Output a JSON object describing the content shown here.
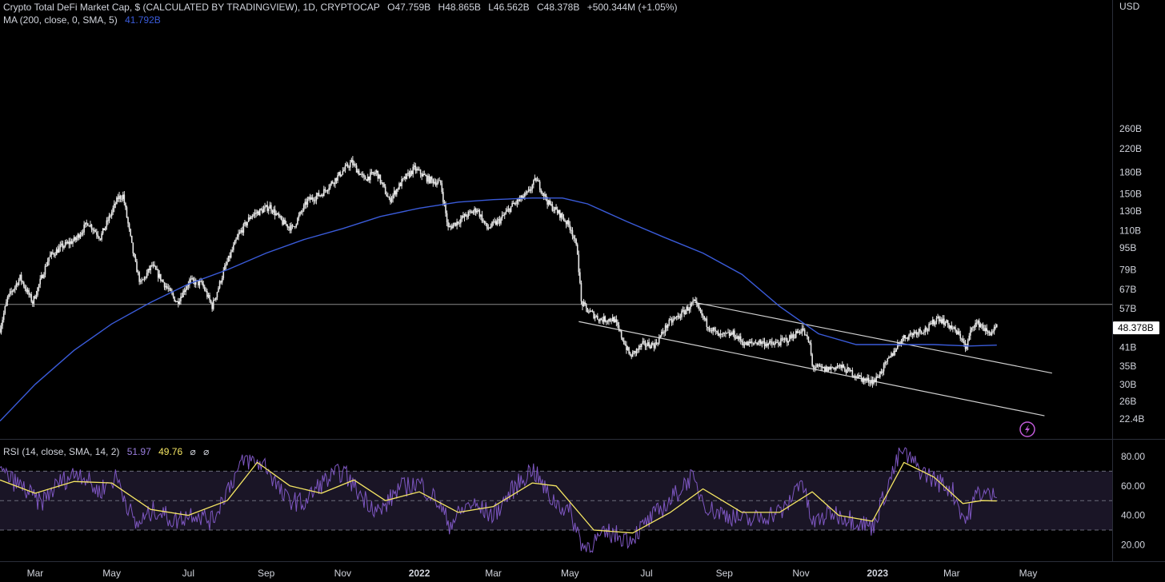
{
  "header": {
    "title": "Crypto Total DeFi Market Cap, $ (CALCULATED BY TRADINGVIEW), 1D, CRYPTOCAP",
    "open": "O47.759B",
    "high": "H48.865B",
    "low": "L46.562B",
    "close": "C48.378B",
    "change": "+500.344M (+1.05%)",
    "ma_label": "MA (200, close, 0, SMA, 5)",
    "ma_value": "41.792B",
    "currency": "USD"
  },
  "colors": {
    "background": "#000000",
    "candles": "#e8e8e8",
    "ma_line": "#3a5bd9",
    "channel": "#d0d0d0",
    "rsi_line": "#7e57c2",
    "rsi_ma": "#f5e663",
    "rsi_band": "#1a1526",
    "last_price_label_bg": "#ffffff"
  },
  "chart_data": [
    {
      "type": "candlestick",
      "title": "Crypto Total DeFi Market Cap",
      "y_scale": "log",
      "y_ticks": [
        "260B",
        "220B",
        "180B",
        "150B",
        "130B",
        "110B",
        "95B",
        "79B",
        "67B",
        "57B",
        "48.378B",
        "41B",
        "35B",
        "30B",
        "26B",
        "22.4B"
      ],
      "y_tick_values": [
        260,
        220,
        180,
        150,
        130,
        110,
        95,
        79,
        67,
        57,
        48.378,
        41,
        35,
        30,
        26,
        22.4
      ],
      "y_unit": "USD (billions)",
      "last_price": 48.378,
      "last_price_label": "48.378B",
      "x_ticks": [
        "Mar",
        "May",
        "Jul",
        "Sep",
        "Nov",
        "2022",
        "Mar",
        "May",
        "Jul",
        "Sep",
        "Nov",
        "2023",
        "Mar",
        "May"
      ],
      "x_tick_dates": [
        "2021-03",
        "2021-05",
        "2021-07",
        "2021-09",
        "2021-11",
        "2022-01",
        "2022-03",
        "2022-05",
        "2022-07",
        "2022-09",
        "2022-11",
        "2023-01",
        "2023-03",
        "2023-05"
      ],
      "price_path": [
        {
          "date": "2021-02-01",
          "value": 48
        },
        {
          "date": "2021-02-07",
          "value": 62
        },
        {
          "date": "2021-02-17",
          "value": 74
        },
        {
          "date": "2021-02-27",
          "value": 60
        },
        {
          "date": "2021-03-12",
          "value": 88
        },
        {
          "date": "2021-03-22",
          "value": 96
        },
        {
          "date": "2021-04-02",
          "value": 102
        },
        {
          "date": "2021-04-12",
          "value": 118
        },
        {
          "date": "2021-04-22",
          "value": 104
        },
        {
          "date": "2021-05-06",
          "value": 145
        },
        {
          "date": "2021-05-10",
          "value": 148
        },
        {
          "date": "2021-05-19",
          "value": 86
        },
        {
          "date": "2021-05-24",
          "value": 70
        },
        {
          "date": "2021-06-02",
          "value": 82
        },
        {
          "date": "2021-06-12",
          "value": 70
        },
        {
          "date": "2021-06-22",
          "value": 60
        },
        {
          "date": "2021-07-02",
          "value": 72
        },
        {
          "date": "2021-07-12",
          "value": 70
        },
        {
          "date": "2021-07-20",
          "value": 58
        },
        {
          "date": "2021-07-30",
          "value": 80
        },
        {
          "date": "2021-08-10",
          "value": 106
        },
        {
          "date": "2021-08-20",
          "value": 125
        },
        {
          "date": "2021-09-04",
          "value": 135
        },
        {
          "date": "2021-09-14",
          "value": 118
        },
        {
          "date": "2021-09-22",
          "value": 112
        },
        {
          "date": "2021-10-04",
          "value": 142
        },
        {
          "date": "2021-10-15",
          "value": 150
        },
        {
          "date": "2021-10-30",
          "value": 178
        },
        {
          "date": "2021-11-08",
          "value": 196
        },
        {
          "date": "2021-11-18",
          "value": 170
        },
        {
          "date": "2021-11-28",
          "value": 180
        },
        {
          "date": "2021-12-08",
          "value": 142
        },
        {
          "date": "2021-12-18",
          "value": 166
        },
        {
          "date": "2021-12-28",
          "value": 186
        },
        {
          "date": "2022-01-08",
          "value": 170
        },
        {
          "date": "2022-01-18",
          "value": 164
        },
        {
          "date": "2022-01-24",
          "value": 112
        },
        {
          "date": "2022-02-06",
          "value": 124
        },
        {
          "date": "2022-02-16",
          "value": 132
        },
        {
          "date": "2022-02-24",
          "value": 112
        },
        {
          "date": "2022-03-06",
          "value": 120
        },
        {
          "date": "2022-03-16",
          "value": 136
        },
        {
          "date": "2022-03-28",
          "value": 150
        },
        {
          "date": "2022-04-04",
          "value": 170
        },
        {
          "date": "2022-04-14",
          "value": 138
        },
        {
          "date": "2022-04-24",
          "value": 125
        },
        {
          "date": "2022-05-02",
          "value": 112
        },
        {
          "date": "2022-05-07",
          "value": 92
        },
        {
          "date": "2022-05-10",
          "value": 60
        },
        {
          "date": "2022-05-15",
          "value": 56
        },
        {
          "date": "2022-05-25",
          "value": 52
        },
        {
          "date": "2022-06-05",
          "value": 52
        },
        {
          "date": "2022-06-12",
          "value": 44
        },
        {
          "date": "2022-06-18",
          "value": 38
        },
        {
          "date": "2022-06-28",
          "value": 42
        },
        {
          "date": "2022-07-08",
          "value": 42
        },
        {
          "date": "2022-07-18",
          "value": 50
        },
        {
          "date": "2022-07-28",
          "value": 54
        },
        {
          "date": "2022-08-08",
          "value": 60
        },
        {
          "date": "2022-08-18",
          "value": 50
        },
        {
          "date": "2022-08-28",
          "value": 45
        },
        {
          "date": "2022-09-08",
          "value": 46
        },
        {
          "date": "2022-09-18",
          "value": 42
        },
        {
          "date": "2022-09-28",
          "value": 43
        },
        {
          "date": "2022-10-10",
          "value": 42
        },
        {
          "date": "2022-10-22",
          "value": 44
        },
        {
          "date": "2022-11-02",
          "value": 48
        },
        {
          "date": "2022-11-08",
          "value": 42
        },
        {
          "date": "2022-11-10",
          "value": 35
        },
        {
          "date": "2022-11-20",
          "value": 34
        },
        {
          "date": "2022-12-01",
          "value": 35
        },
        {
          "date": "2022-12-12",
          "value": 33
        },
        {
          "date": "2022-12-22",
          "value": 31
        },
        {
          "date": "2022-12-30",
          "value": 31
        },
        {
          "date": "2023-01-10",
          "value": 37
        },
        {
          "date": "2023-01-20",
          "value": 44
        },
        {
          "date": "2023-02-01",
          "value": 47
        },
        {
          "date": "2023-02-10",
          "value": 48
        },
        {
          "date": "2023-02-18",
          "value": 53
        },
        {
          "date": "2023-02-28",
          "value": 49
        },
        {
          "date": "2023-03-10",
          "value": 44
        },
        {
          "date": "2023-03-12",
          "value": 40
        },
        {
          "date": "2023-03-18",
          "value": 50
        },
        {
          "date": "2023-03-24",
          "value": 50
        },
        {
          "date": "2023-03-30",
          "value": 46
        },
        {
          "date": "2023-04-06",
          "value": 48.378
        }
      ],
      "moving_average": {
        "label": "MA (200, close, 0, SMA, 5)",
        "last_value": 41.792,
        "points": [
          {
            "date": "2021-02-01",
            "value": 22
          },
          {
            "date": "2021-03-01",
            "value": 30
          },
          {
            "date": "2021-04-01",
            "value": 40
          },
          {
            "date": "2021-05-01",
            "value": 50
          },
          {
            "date": "2021-06-01",
            "value": 60
          },
          {
            "date": "2021-07-01",
            "value": 70
          },
          {
            "date": "2021-08-01",
            "value": 79
          },
          {
            "date": "2021-09-01",
            "value": 91
          },
          {
            "date": "2021-10-01",
            "value": 102
          },
          {
            "date": "2021-11-01",
            "value": 112
          },
          {
            "date": "2021-12-01",
            "value": 124
          },
          {
            "date": "2022-01-01",
            "value": 133
          },
          {
            "date": "2022-02-01",
            "value": 140
          },
          {
            "date": "2022-03-01",
            "value": 143
          },
          {
            "date": "2022-04-01",
            "value": 145
          },
          {
            "date": "2022-04-25",
            "value": 145
          },
          {
            "date": "2022-05-15",
            "value": 138
          },
          {
            "date": "2022-06-15",
            "value": 119
          },
          {
            "date": "2022-07-15",
            "value": 104
          },
          {
            "date": "2022-08-15",
            "value": 91
          },
          {
            "date": "2022-09-15",
            "value": 76
          },
          {
            "date": "2022-10-15",
            "value": 58
          },
          {
            "date": "2022-11-15",
            "value": 46
          },
          {
            "date": "2022-12-15",
            "value": 42
          },
          {
            "date": "2023-01-15",
            "value": 42
          },
          {
            "date": "2023-02-15",
            "value": 42
          },
          {
            "date": "2023-03-15",
            "value": 41.5
          },
          {
            "date": "2023-04-06",
            "value": 41.8
          }
        ]
      },
      "horizontal_line": 59,
      "channel_upper": [
        {
          "date": "2022-08-08",
          "value": 60
        },
        {
          "date": "2023-05-20",
          "value": 33
        }
      ],
      "channel_lower": [
        {
          "date": "2022-05-08",
          "value": 51
        },
        {
          "date": "2023-05-14",
          "value": 23
        }
      ]
    },
    {
      "type": "line",
      "title": "RSI (14, close, SMA, 14, 2)",
      "legend": [
        "51.97",
        "49.76"
      ],
      "legend_icons": [
        "⌀",
        "⌀"
      ],
      "y_ticks": [
        "80.00",
        "60.00",
        "40.00",
        "20.00"
      ],
      "y_tick_values": [
        80,
        60,
        40,
        20
      ],
      "band_upper": 70,
      "band_mid": 50,
      "band_lower": 30,
      "series": [
        {
          "name": "51.97",
          "points": [
            {
              "date": "2021-02-01",
              "value": 70
            },
            {
              "date": "2021-02-20",
              "value": 58
            },
            {
              "date": "2021-03-05",
              "value": 48
            },
            {
              "date": "2021-03-20",
              "value": 62
            },
            {
              "date": "2021-04-05",
              "value": 70
            },
            {
              "date": "2021-04-20",
              "value": 56
            },
            {
              "date": "2021-05-05",
              "value": 66
            },
            {
              "date": "2021-05-20",
              "value": 33
            },
            {
              "date": "2021-06-05",
              "value": 44
            },
            {
              "date": "2021-06-20",
              "value": 36
            },
            {
              "date": "2021-07-05",
              "value": 42
            },
            {
              "date": "2021-07-20",
              "value": 36
            },
            {
              "date": "2021-08-01",
              "value": 58
            },
            {
              "date": "2021-08-15",
              "value": 78
            },
            {
              "date": "2021-09-01",
              "value": 74
            },
            {
              "date": "2021-09-15",
              "value": 52
            },
            {
              "date": "2021-10-01",
              "value": 48
            },
            {
              "date": "2021-10-15",
              "value": 62
            },
            {
              "date": "2021-11-01",
              "value": 70
            },
            {
              "date": "2021-11-15",
              "value": 54
            },
            {
              "date": "2021-12-01",
              "value": 42
            },
            {
              "date": "2021-12-15",
              "value": 58
            },
            {
              "date": "2022-01-01",
              "value": 62
            },
            {
              "date": "2022-01-15",
              "value": 50
            },
            {
              "date": "2022-01-25",
              "value": 34
            },
            {
              "date": "2022-02-10",
              "value": 48
            },
            {
              "date": "2022-03-01",
              "value": 40
            },
            {
              "date": "2022-03-15",
              "value": 56
            },
            {
              "date": "2022-04-01",
              "value": 72
            },
            {
              "date": "2022-04-15",
              "value": 52
            },
            {
              "date": "2022-05-01",
              "value": 42
            },
            {
              "date": "2022-05-12",
              "value": 18
            },
            {
              "date": "2022-06-01",
              "value": 28
            },
            {
              "date": "2022-06-18",
              "value": 24
            },
            {
              "date": "2022-07-05",
              "value": 38
            },
            {
              "date": "2022-07-20",
              "value": 50
            },
            {
              "date": "2022-08-05",
              "value": 66
            },
            {
              "date": "2022-08-20",
              "value": 44
            },
            {
              "date": "2022-09-05",
              "value": 40
            },
            {
              "date": "2022-09-20",
              "value": 36
            },
            {
              "date": "2022-10-05",
              "value": 40
            },
            {
              "date": "2022-10-20",
              "value": 44
            },
            {
              "date": "2022-11-01",
              "value": 66
            },
            {
              "date": "2022-11-10",
              "value": 34
            },
            {
              "date": "2022-11-25",
              "value": 42
            },
            {
              "date": "2022-12-10",
              "value": 38
            },
            {
              "date": "2022-12-28",
              "value": 32
            },
            {
              "date": "2023-01-10",
              "value": 62
            },
            {
              "date": "2023-01-20",
              "value": 84
            },
            {
              "date": "2023-02-05",
              "value": 70
            },
            {
              "date": "2023-02-20",
              "value": 62
            },
            {
              "date": "2023-03-01",
              "value": 58
            },
            {
              "date": "2023-03-12",
              "value": 36
            },
            {
              "date": "2023-03-22",
              "value": 56
            },
            {
              "date": "2023-04-06",
              "value": 51.97
            }
          ]
        },
        {
          "name": "49.76",
          "points": [
            {
              "date": "2021-02-01",
              "value": 64
            },
            {
              "date": "2021-03-01",
              "value": 55
            },
            {
              "date": "2021-04-01",
              "value": 63
            },
            {
              "date": "2021-05-01",
              "value": 62
            },
            {
              "date": "2021-06-01",
              "value": 44
            },
            {
              "date": "2021-07-01",
              "value": 40
            },
            {
              "date": "2021-08-01",
              "value": 50
            },
            {
              "date": "2021-08-25",
              "value": 76
            },
            {
              "date": "2021-09-20",
              "value": 60
            },
            {
              "date": "2021-10-15",
              "value": 55
            },
            {
              "date": "2021-11-10",
              "value": 64
            },
            {
              "date": "2021-12-05",
              "value": 50
            },
            {
              "date": "2022-01-01",
              "value": 56
            },
            {
              "date": "2022-02-01",
              "value": 42
            },
            {
              "date": "2022-03-01",
              "value": 46
            },
            {
              "date": "2022-04-01",
              "value": 62
            },
            {
              "date": "2022-04-20",
              "value": 60
            },
            {
              "date": "2022-05-20",
              "value": 30
            },
            {
              "date": "2022-06-20",
              "value": 28
            },
            {
              "date": "2022-07-20",
              "value": 42
            },
            {
              "date": "2022-08-15",
              "value": 58
            },
            {
              "date": "2022-09-15",
              "value": 42
            },
            {
              "date": "2022-10-15",
              "value": 42
            },
            {
              "date": "2022-11-10",
              "value": 56
            },
            {
              "date": "2022-12-01",
              "value": 40
            },
            {
              "date": "2022-12-28",
              "value": 36
            },
            {
              "date": "2023-01-22",
              "value": 76
            },
            {
              "date": "2023-02-15",
              "value": 66
            },
            {
              "date": "2023-03-10",
              "value": 48
            },
            {
              "date": "2023-03-25",
              "value": 50
            },
            {
              "date": "2023-04-06",
              "value": 49.76
            }
          ]
        }
      ]
    }
  ]
}
